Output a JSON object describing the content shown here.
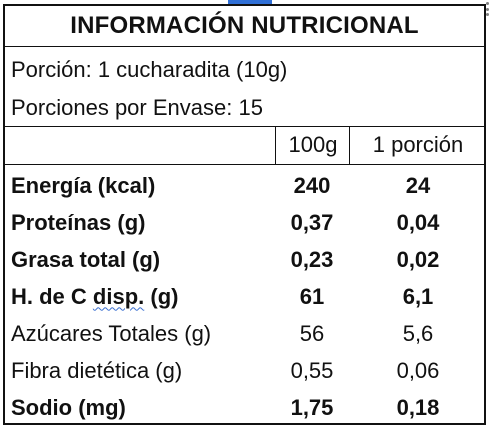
{
  "label": {
    "title": "INFORMACIÓN NUTRICIONAL",
    "serving_size": "Porción: 1 cucharadita (10g)",
    "servings_per_container": "Porciones por Envase: 15",
    "columns": [
      "100g",
      "1 porción"
    ],
    "rows": [
      {
        "name": "Energía (kcal)",
        "per_100g": "240",
        "per_serving": "24",
        "bold": true
      },
      {
        "name": "Proteínas (g)",
        "per_100g": "0,37",
        "per_serving": "0,04",
        "bold": true
      },
      {
        "name": "Grasa total (g)",
        "per_100g": "0,23",
        "per_serving": "0,02",
        "bold": true
      },
      {
        "name_prefix": "H. de C ",
        "name_underlined": "disp.",
        "name_suffix": " (g)",
        "per_100g": "61",
        "per_serving": "6,1",
        "bold": true
      },
      {
        "name": "Azúcares Totales (g)",
        "per_100g": "56",
        "per_serving": "5,6",
        "bold": false
      },
      {
        "name": "Fibra dietética (g)",
        "per_100g": "0,55",
        "per_serving": "0,06",
        "bold": false
      },
      {
        "name": "Sodio (mg)",
        "per_100g": "1,75",
        "per_serving": "0,18",
        "bold": true
      }
    ]
  }
}
